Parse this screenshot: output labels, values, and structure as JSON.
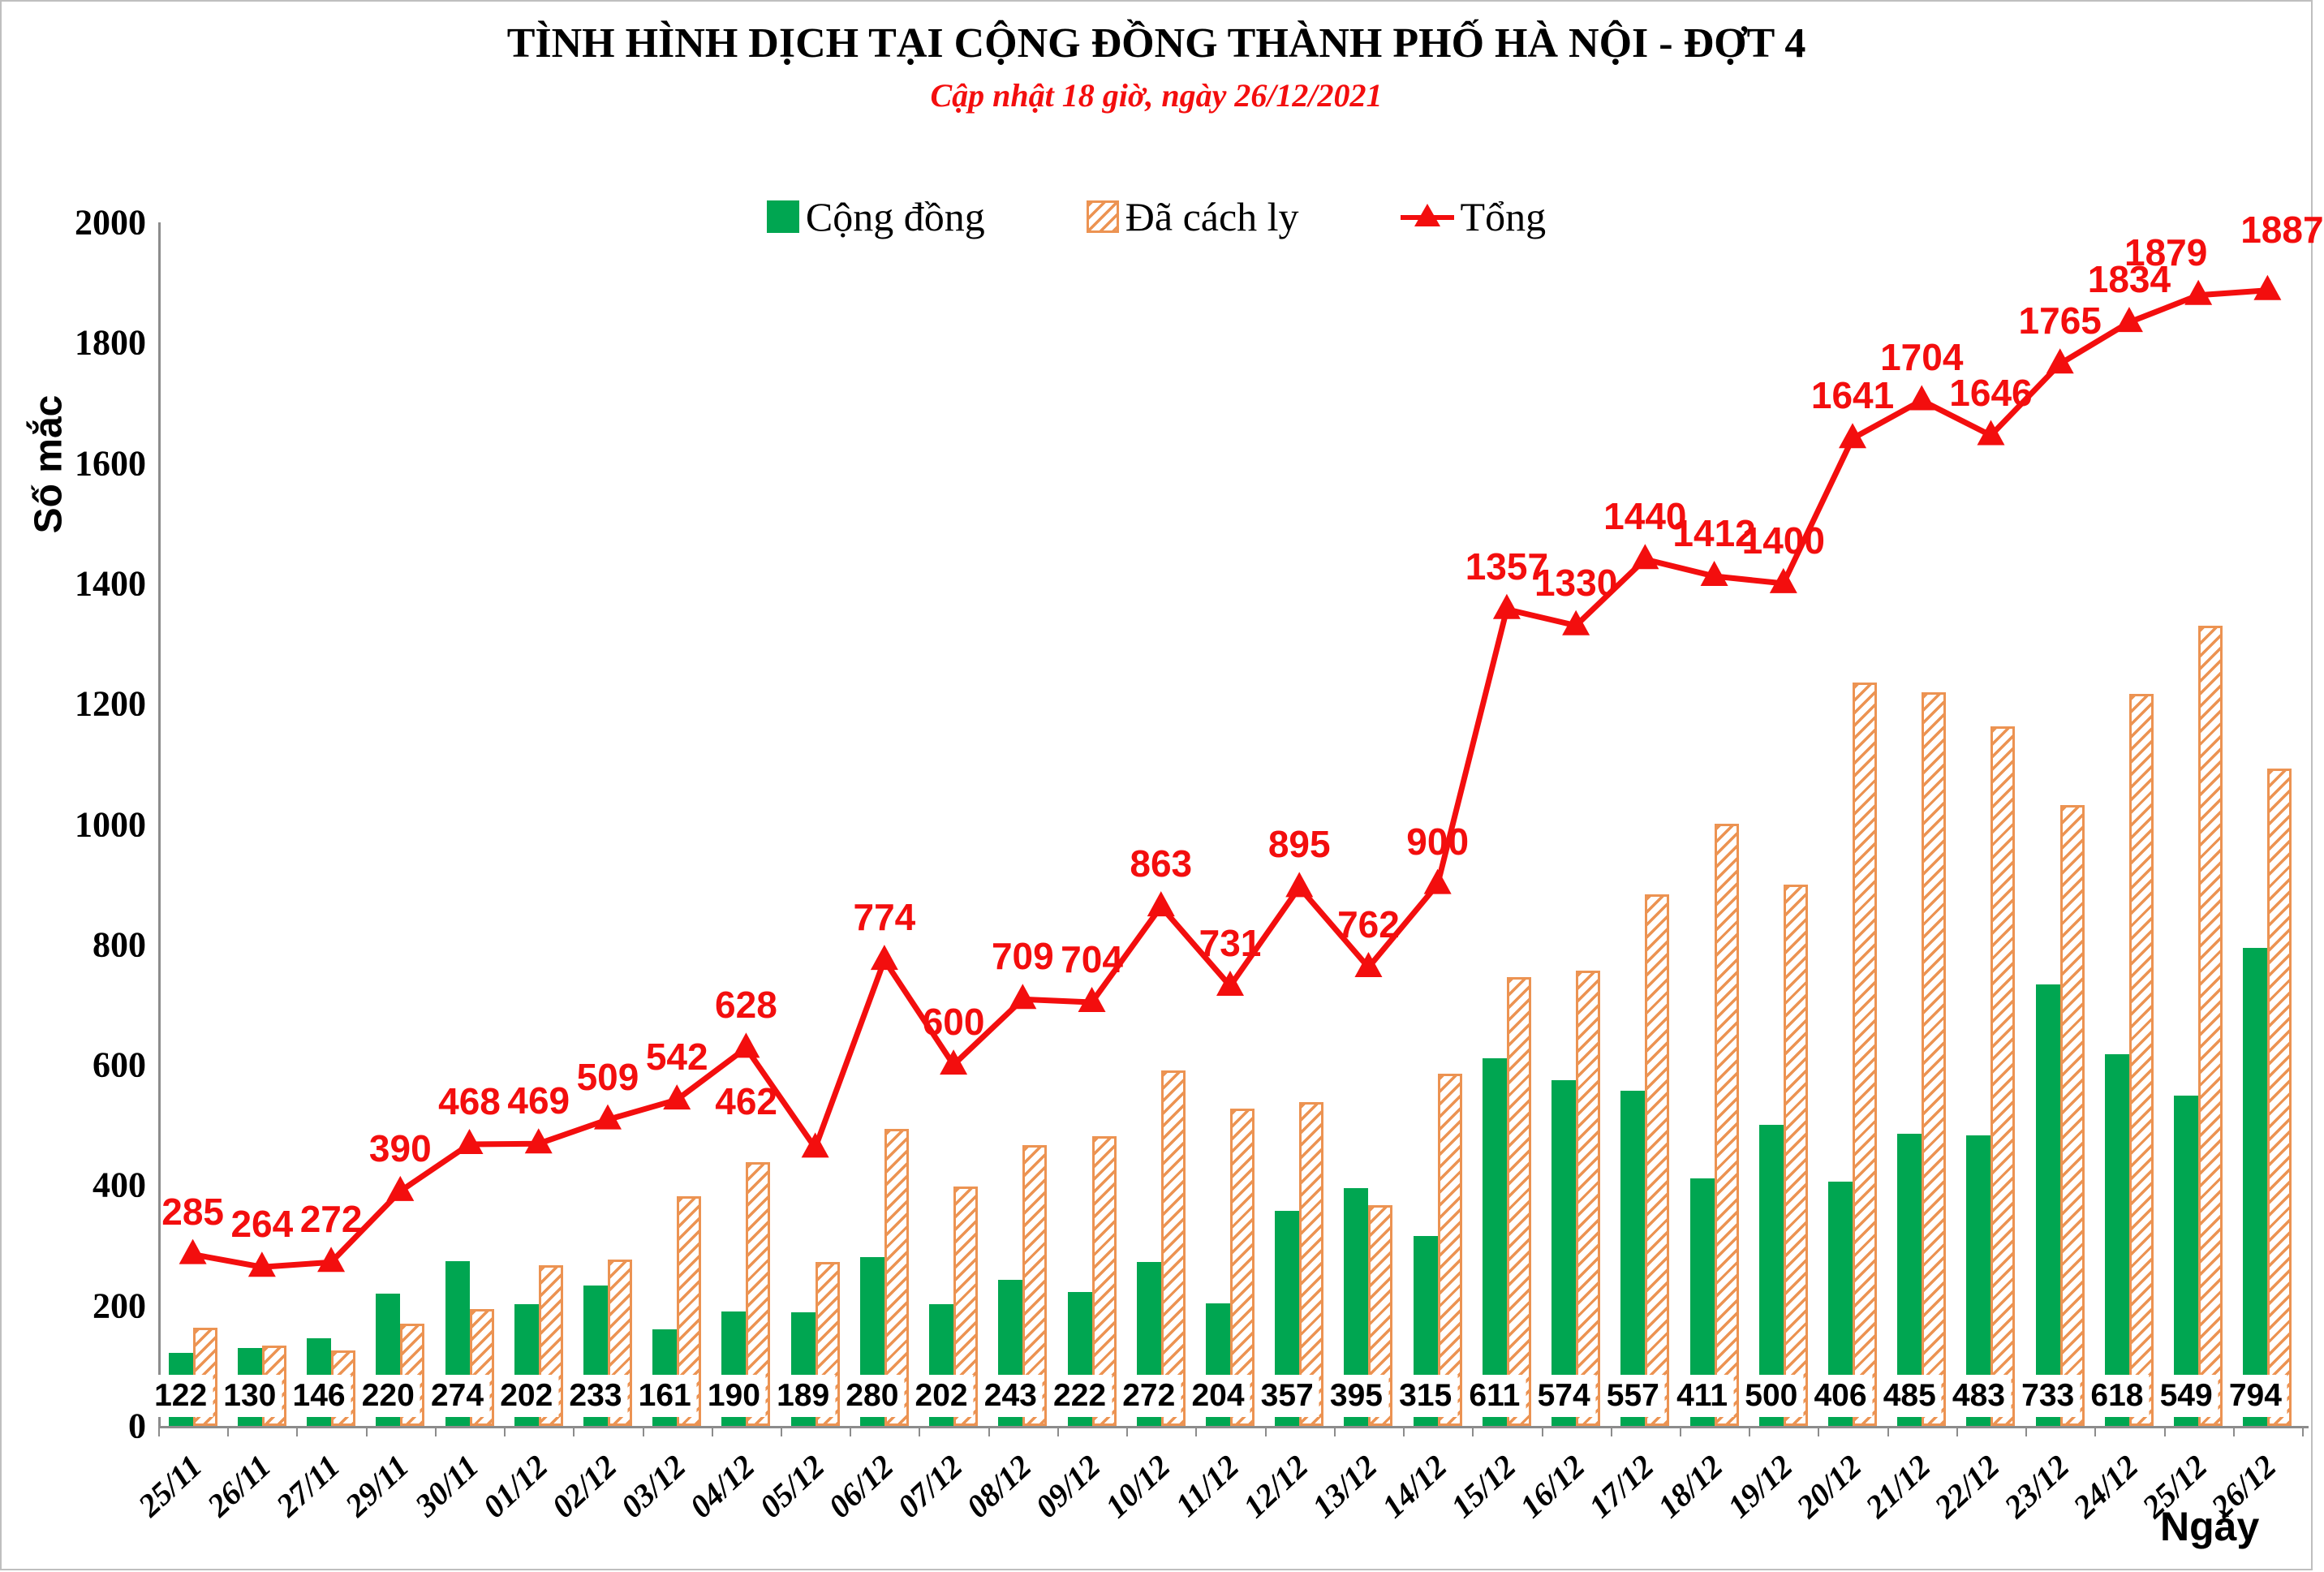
{
  "title": "TÌNH HÌNH DỊCH TẠI CỘNG ĐỒNG THÀNH PHỐ HÀ NỘI - ĐỢT 4",
  "subtitle": "Cập nhật 18 giờ, ngày 26/12/2021",
  "y_axis_label": "Số mắc",
  "x_axis_label": "Ngày",
  "colors": {
    "community_green": "#00a651",
    "quarantine_orange": "#ec9352",
    "total_red": "#f30e0e",
    "axis_gray": "#8c8c8c"
  },
  "chart_data": {
    "type": "bar+line",
    "categories": [
      "25/11",
      "26/11",
      "27/11",
      "29/11",
      "30/11",
      "01/12",
      "02/12",
      "03/12",
      "04/12",
      "05/12",
      "06/12",
      "07/12",
      "08/12",
      "09/12",
      "10/12",
      "11/12",
      "12/12",
      "13/12",
      "14/12",
      "15/12",
      "16/12",
      "17/12",
      "18/12",
      "19/12",
      "20/12",
      "21/12",
      "22/12",
      "23/12",
      "24/12",
      "25/12",
      "26/12"
    ],
    "series": [
      {
        "name": "Cộng đồng",
        "type": "bar",
        "style": "solid-green",
        "values": [
          122,
          130,
          146,
          220,
          274,
          202,
          233,
          161,
          190,
          189,
          280,
          202,
          243,
          222,
          272,
          204,
          357,
          395,
          315,
          611,
          574,
          557,
          411,
          500,
          406,
          485,
          483,
          733,
          618,
          549,
          794
        ],
        "labels_shown": true
      },
      {
        "name": "Đã cách ly",
        "type": "bar",
        "style": "hatched-orange",
        "values": [
          163,
          134,
          126,
          170,
          194,
          267,
          276,
          381,
          438,
          273,
          494,
          398,
          466,
          482,
          591,
          527,
          538,
          367,
          585,
          746,
          756,
          883,
          1001,
          900,
          1235,
          1219,
          1163,
          1032,
          1216,
          1330,
          1093
        ],
        "labels_shown": false
      },
      {
        "name": "Tổng",
        "type": "line",
        "marker": "triangle-up",
        "values": [
          285,
          264,
          272,
          390,
          468,
          469,
          509,
          542,
          628,
          462,
          774,
          600,
          709,
          704,
          863,
          731,
          895,
          762,
          900,
          1357,
          1330,
          1440,
          1412,
          1400,
          1641,
          1704,
          1646,
          1765,
          1834,
          1879,
          1887
        ],
        "labels_shown": true
      }
    ],
    "ylim": [
      0,
      2000
    ],
    "y_tick_step": 200,
    "grid": false,
    "legend_position": "top-center",
    "x_tick_rotation_deg": -43
  }
}
